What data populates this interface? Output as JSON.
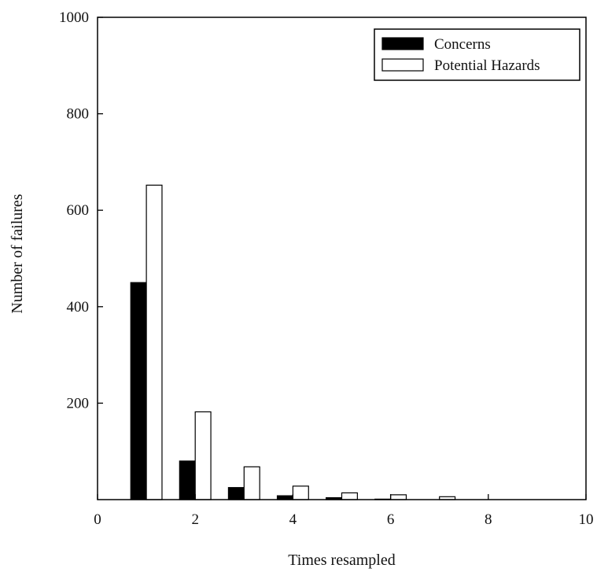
{
  "chart_data": {
    "type": "bar",
    "title": "",
    "xlabel": "Times resampled",
    "ylabel": "Number of failures",
    "xlim": [
      0,
      10
    ],
    "ylim": [
      0,
      1000
    ],
    "x_ticks": [
      0,
      2,
      4,
      6,
      8,
      10
    ],
    "y_ticks": [
      200,
      400,
      600,
      800,
      1000
    ],
    "grid": false,
    "legend_position": "top-right",
    "categories": [
      1,
      2,
      3,
      4,
      5,
      6,
      7
    ],
    "series": [
      {
        "name": "Concerns",
        "fill": "#000000",
        "values": [
          450,
          80,
          25,
          8,
          4,
          1,
          0
        ]
      },
      {
        "name": "Potential Hazards",
        "fill": "#ffffff",
        "values": [
          652,
          182,
          68,
          28,
          14,
          10,
          6
        ]
      }
    ]
  }
}
